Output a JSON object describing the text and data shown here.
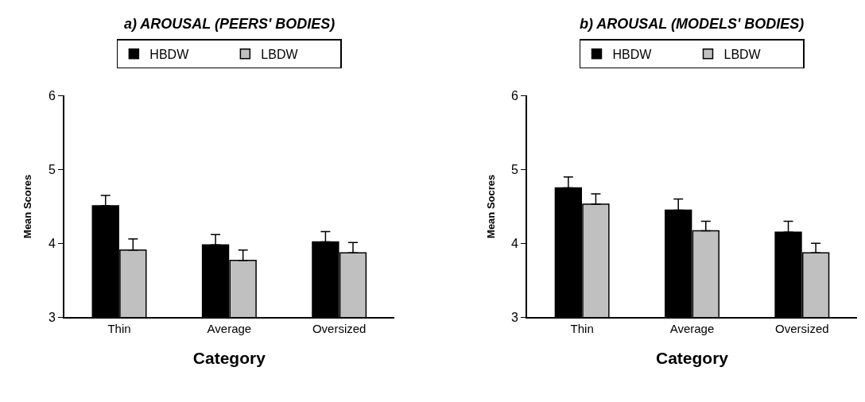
{
  "chart_data": [
    {
      "type": "bar",
      "title": "a) AROUSAL (PEERS' BODIES)",
      "xlabel": "Category",
      "ylabel": "Mean Scores",
      "categories": [
        "Thin",
        "Average",
        "Oversized"
      ],
      "ylim": [
        3,
        6
      ],
      "yticks": [
        3,
        4,
        5,
        6
      ],
      "legend": "top",
      "series": [
        {
          "name": "HBDW",
          "color": "#000000",
          "values": [
            4.51,
            3.98,
            4.02
          ],
          "errors": [
            [
              4.51,
              4.65
            ],
            [
              3.98,
              4.12
            ],
            [
              4.02,
              4.16
            ]
          ]
        },
        {
          "name": "LBDW",
          "color": "#c0c0c0",
          "values": [
            3.91,
            3.77,
            3.87
          ],
          "errors": [
            [
              3.91,
              4.06
            ],
            [
              3.77,
              3.91
            ],
            [
              3.87,
              4.01
            ]
          ]
        }
      ]
    },
    {
      "type": "bar",
      "title": "b) AROUSAL (MODELS' BODIES)",
      "xlabel": "Category",
      "ylabel": "Mean Socres",
      "categories": [
        "Thin",
        "Average",
        "Oversized"
      ],
      "ylim": [
        3,
        6
      ],
      "yticks": [
        3,
        4,
        5,
        6
      ],
      "legend": "top",
      "series": [
        {
          "name": "HBDW",
          "color": "#000000",
          "values": [
            4.75,
            4.45,
            4.15
          ],
          "errors": [
            [
              4.75,
              4.9
            ],
            [
              4.45,
              4.6
            ],
            [
              4.15,
              4.3
            ]
          ]
        },
        {
          "name": "LBDW",
          "color": "#c0c0c0",
          "values": [
            4.53,
            4.17,
            3.87
          ],
          "errors": [
            [
              4.53,
              4.67
            ],
            [
              4.17,
              4.3
            ],
            [
              3.87,
              4.0
            ]
          ]
        }
      ]
    }
  ]
}
